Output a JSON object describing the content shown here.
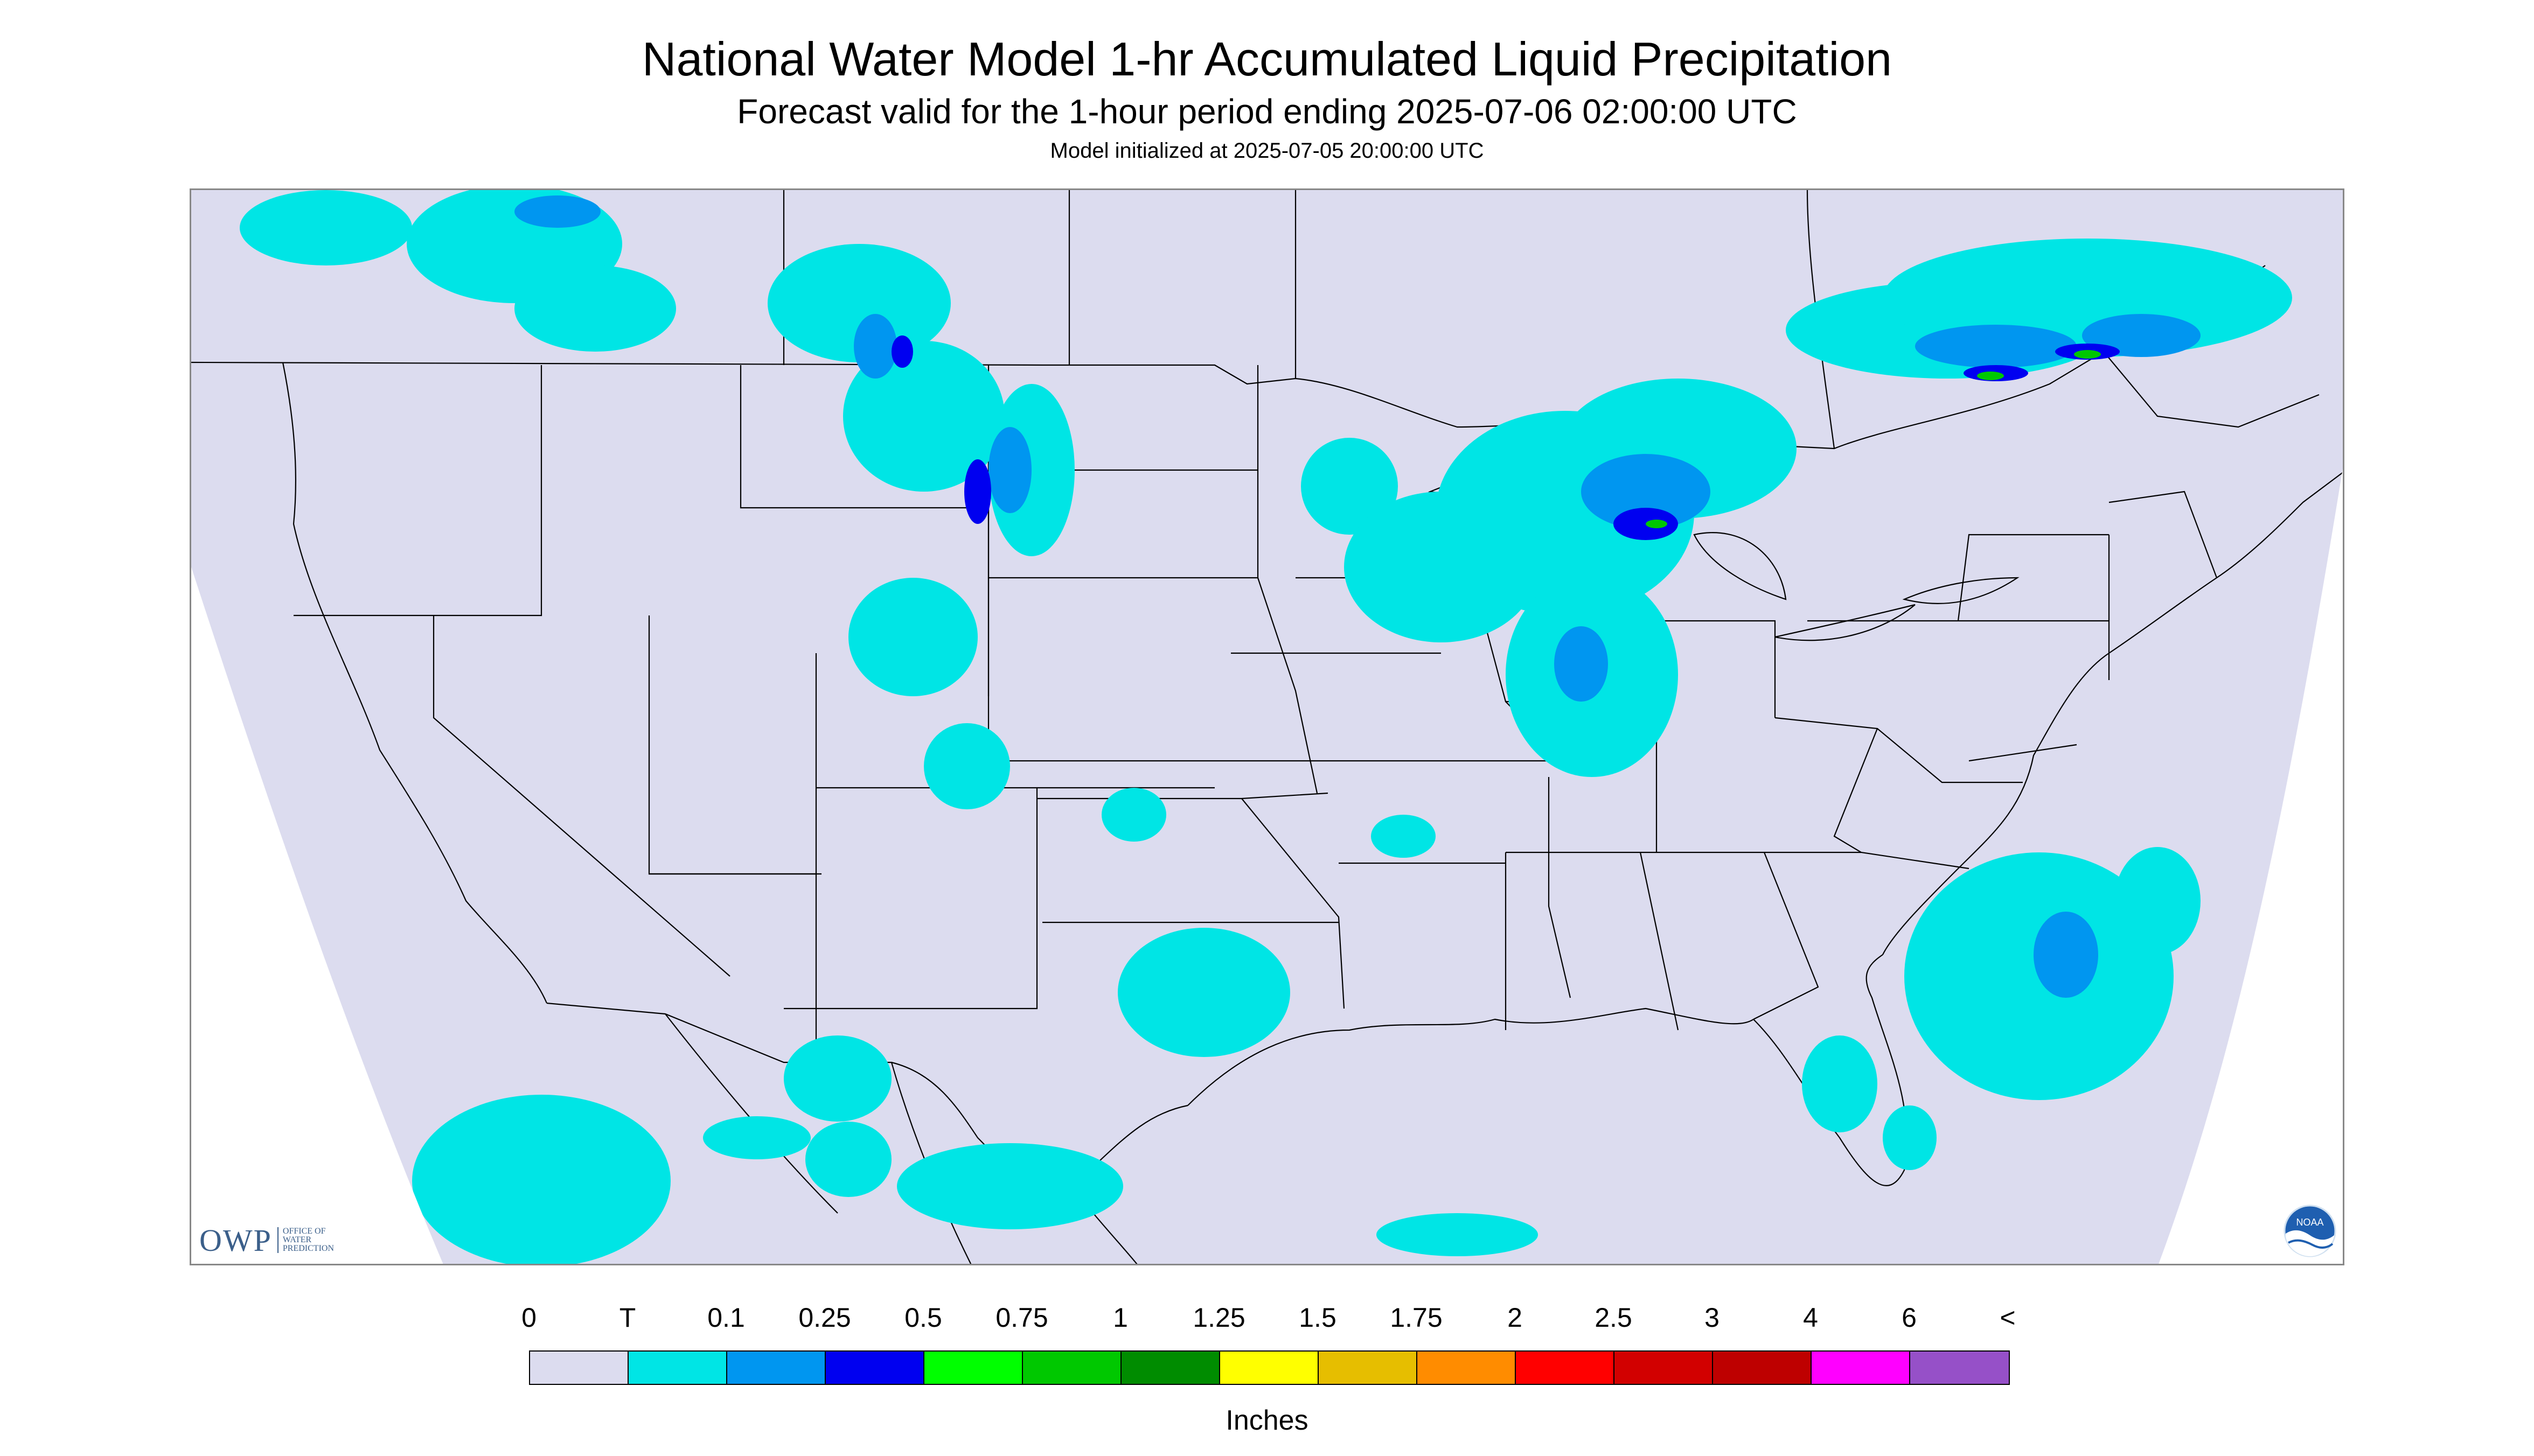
{
  "title": "National Water Model 1-hr Accumulated Liquid Precipitation",
  "subtitle": "Forecast valid for the 1-hour period ending 2025-07-06 02:00:00 UTC",
  "model_init": "Model initialized at 2025-07-05 20:00:00 UTC",
  "map": {
    "background_color": "#dcdcef",
    "outside_projection_color": "#ffffff",
    "boundary_color": "#000000"
  },
  "logos": {
    "owp_mark": "OWP",
    "owp_text": [
      "OFFICE OF",
      "WATER",
      "PREDICTION"
    ],
    "noaa_text": "NOAA",
    "noaa_icon": "noaa-logo"
  },
  "legend": {
    "labels": [
      "0",
      "T",
      "0.1",
      "0.25",
      "0.5",
      "0.75",
      "1",
      "1.25",
      "1.5",
      "1.75",
      "2",
      "2.5",
      "3",
      "4",
      "6",
      "<"
    ],
    "colors": [
      "#dcdcef",
      "#00e5e5",
      "#0096f0",
      "#0000f0",
      "#00ff00",
      "#00c800",
      "#008c00",
      "#ffff00",
      "#e6be00",
      "#ff8c00",
      "#ff0000",
      "#d20000",
      "#be0000",
      "#ff00ff",
      "#9650c8"
    ],
    "units": "Inches"
  }
}
